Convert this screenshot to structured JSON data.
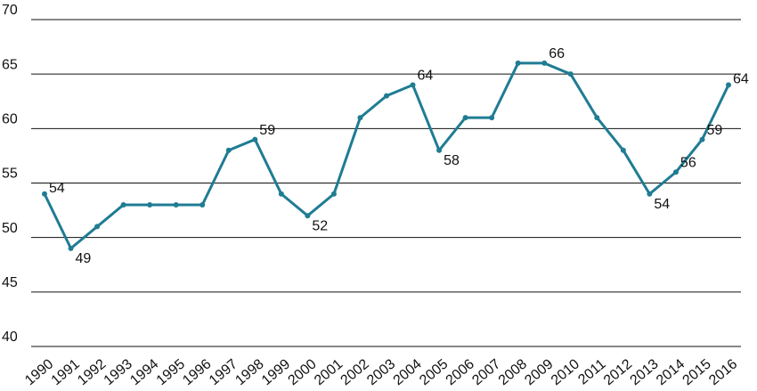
{
  "chart_data": {
    "type": "line",
    "categories": [
      "1990",
      "1991",
      "1992",
      "1993",
      "1994",
      "1995",
      "1996",
      "1997",
      "1998",
      "1999",
      "2000",
      "2001",
      "2002",
      "2003",
      "2004",
      "2005",
      "2006",
      "2007",
      "2008",
      "2009",
      "2010",
      "2011",
      "2012",
      "2013",
      "2014",
      "2015",
      "2016"
    ],
    "series": [
      {
        "color": "#1f7c93",
        "values": [
          54,
          49,
          51,
          53,
          53,
          53,
          53,
          58,
          59,
          54,
          52,
          54,
          61,
          63,
          64,
          58,
          61,
          61,
          66,
          66,
          65,
          61,
          58,
          54,
          56,
          59,
          64
        ],
        "value_labels": [
          54,
          49,
          null,
          null,
          null,
          null,
          null,
          null,
          59,
          null,
          52,
          null,
          null,
          null,
          64,
          58,
          null,
          null,
          null,
          66,
          null,
          null,
          null,
          54,
          56,
          59,
          64
        ]
      }
    ],
    "ylim": [
      40,
      70
    ],
    "yticks": [
      40,
      45,
      50,
      55,
      60,
      65,
      70
    ],
    "grid": true
  }
}
